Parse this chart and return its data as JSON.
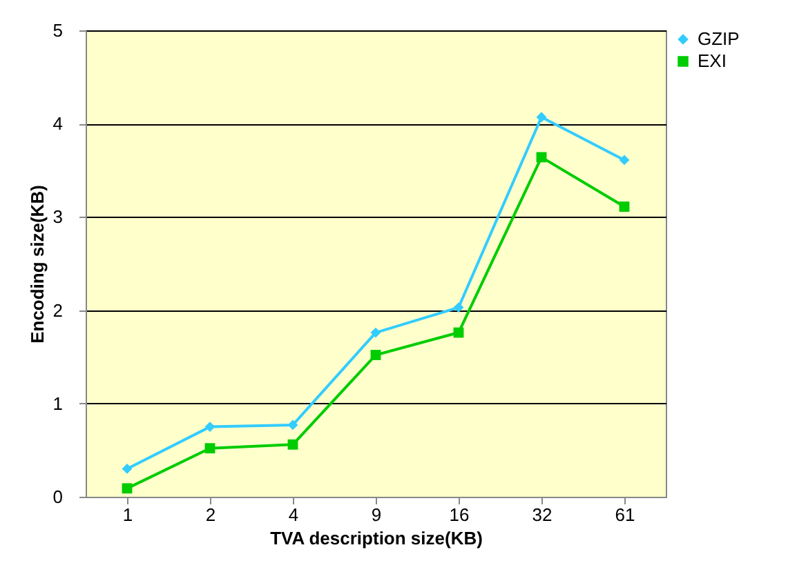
{
  "chart_data": {
    "type": "line",
    "xlabel": "TVA description size(KB)",
    "ylabel": "Encoding size(KB)",
    "categories": [
      "1",
      "2",
      "4",
      "9",
      "16",
      "32",
      "61"
    ],
    "series": [
      {
        "name": "GZIP",
        "color": "#33ccff",
        "marker": "diamond",
        "values": [
          0.3,
          0.75,
          0.77,
          1.76,
          2.03,
          4.07,
          3.61
        ]
      },
      {
        "name": "EXI",
        "color": "#00cc00",
        "marker": "square",
        "values": [
          0.09,
          0.52,
          0.56,
          1.52,
          1.76,
          3.64,
          3.11
        ]
      }
    ],
    "ylim": [
      0,
      5
    ],
    "yticks": [
      0,
      1,
      2,
      3,
      4,
      5
    ],
    "grid": "y",
    "legend": "right"
  }
}
